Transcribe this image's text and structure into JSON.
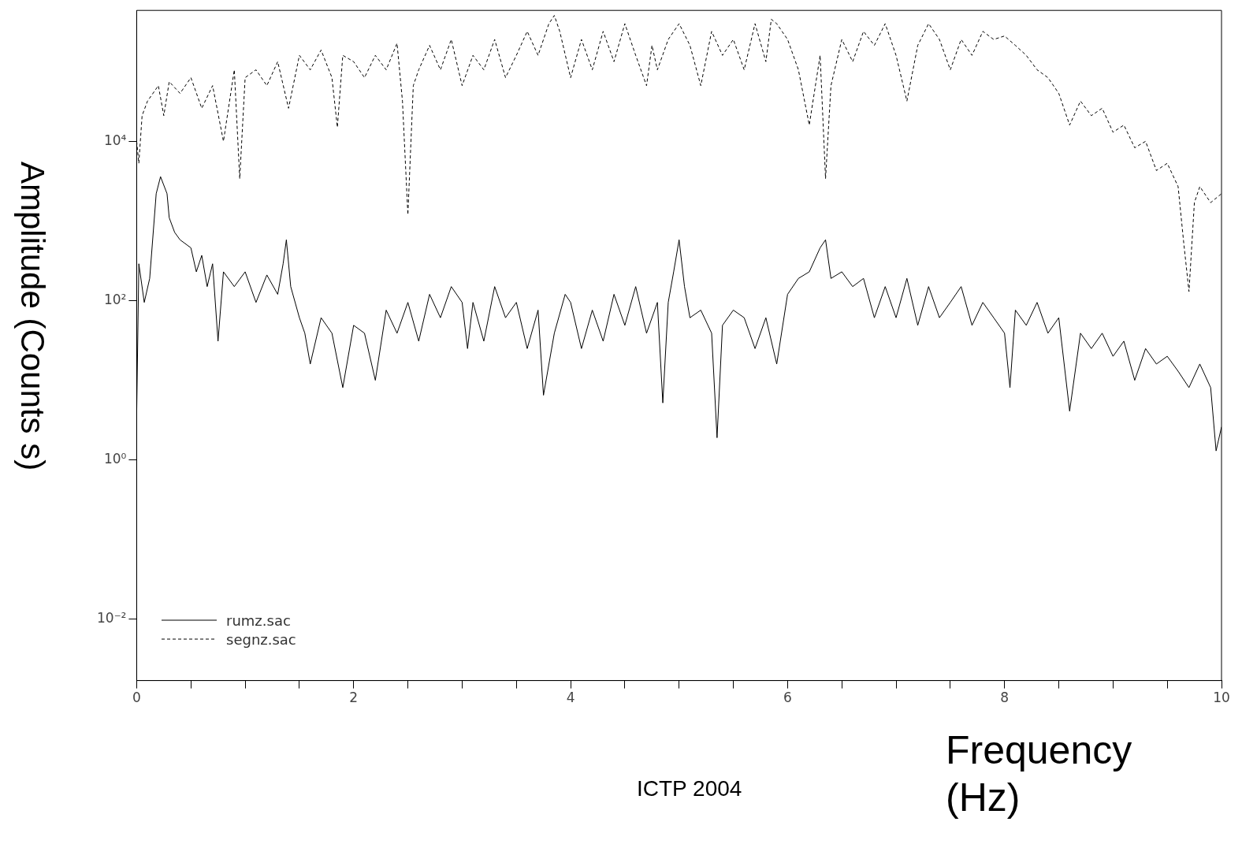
{
  "chart_data": {
    "type": "line",
    "xlabel": "Frequency (Hz)",
    "ylabel": "Amplitude (Counts s)",
    "annotations": [
      "ICTP 2004"
    ],
    "log": "y",
    "xlim": [
      0,
      10
    ],
    "ylim": [
      0.0017,
      440000
    ],
    "xticks": [
      0,
      {
        "value": 0.5,
        "label": null
      },
      {
        "value": 1,
        "label": null
      },
      {
        "value": 1.5,
        "label": null
      },
      2,
      {
        "value": 2.5,
        "label": null
      },
      {
        "value": 3,
        "label": null
      },
      {
        "value": 3.5,
        "label": null
      },
      4,
      {
        "value": 4.5,
        "label": null
      },
      {
        "value": 5,
        "label": null
      },
      {
        "value": 5.5,
        "label": null
      },
      6,
      {
        "value": 6.5,
        "label": null
      },
      {
        "value": 7,
        "label": null
      },
      {
        "value": 7.5,
        "label": null
      },
      8,
      {
        "value": 8.5,
        "label": null
      },
      {
        "value": 9,
        "label": null
      },
      {
        "value": 9.5,
        "label": null
      },
      10
    ],
    "yticks": [
      {
        "value": 0.01,
        "label": "10⁻²"
      },
      {
        "value": 1,
        "label": "10⁰"
      },
      {
        "value": 100,
        "label": "10²"
      },
      {
        "value": 10000,
        "label": "10⁴"
      }
    ],
    "grid": false,
    "legend": "bottom left",
    "marker": "none",
    "series": [
      {
        "name": "rumz.sac",
        "color": "#000000",
        "line_style": "solid",
        "x": [
          0,
          0.02,
          0.07,
          0.12,
          0.18,
          0.22,
          0.28,
          0.3,
          0.35,
          0.4,
          0.5,
          0.55,
          0.6,
          0.65,
          0.7,
          0.75,
          0.8,
          0.9,
          1.0,
          1.1,
          1.2,
          1.3,
          1.35,
          1.38,
          1.42,
          1.5,
          1.55,
          1.6,
          1.7,
          1.8,
          1.9,
          2.0,
          2.1,
          2.2,
          2.3,
          2.4,
          2.5,
          2.6,
          2.7,
          2.8,
          2.9,
          3.0,
          3.05,
          3.1,
          3.2,
          3.3,
          3.4,
          3.5,
          3.6,
          3.7,
          3.75,
          3.85,
          3.95,
          4.0,
          4.1,
          4.2,
          4.3,
          4.4,
          4.5,
          4.6,
          4.7,
          4.8,
          4.85,
          4.9,
          4.95,
          5.0,
          5.05,
          5.1,
          5.2,
          5.3,
          5.35,
          5.4,
          5.5,
          5.6,
          5.7,
          5.8,
          5.9,
          6.0,
          6.1,
          6.2,
          6.3,
          6.35,
          6.4,
          6.5,
          6.6,
          6.7,
          6.8,
          6.9,
          7.0,
          7.1,
          7.2,
          7.3,
          7.4,
          7.5,
          7.6,
          7.7,
          7.8,
          7.9,
          8.0,
          8.05,
          8.1,
          8.2,
          8.3,
          8.4,
          8.5,
          8.6,
          8.7,
          8.8,
          8.9,
          9.0,
          9.1,
          9.2,
          9.3,
          9.4,
          9.5,
          9.6,
          9.7,
          9.8,
          9.9,
          9.95,
          10.0
        ],
        "values": [
          3.7,
          290,
          95,
          190,
          2200,
          3600,
          2200,
          1100,
          720,
          580,
          460,
          230,
          370,
          150,
          290,
          31,
          230,
          150,
          230,
          95,
          210,
          120,
          290,
          580,
          150,
          61,
          39,
          16,
          61,
          39,
          8.1,
          49,
          39,
          10,
          76,
          39,
          95,
          31,
          120,
          61,
          150,
          95,
          25,
          95,
          31,
          150,
          61,
          95,
          25,
          76,
          6.5,
          39,
          120,
          95,
          25,
          76,
          31,
          120,
          49,
          150,
          39,
          95,
          5.2,
          95,
          230,
          580,
          150,
          61,
          76,
          39,
          1.9,
          49,
          76,
          61,
          25,
          61,
          16,
          120,
          190,
          230,
          460,
          580,
          190,
          230,
          150,
          190,
          61,
          150,
          61,
          190,
          49,
          150,
          61,
          95,
          150,
          49,
          95,
          61,
          39,
          8.1,
          76,
          49,
          95,
          39,
          61,
          4.1,
          39,
          25,
          39,
          20,
          31,
          10,
          25,
          16,
          20,
          13,
          8.1,
          16,
          8.1,
          1.3,
          2.6
        ]
      },
      {
        "name": "segnz.sac",
        "color": "#000000",
        "line_style": "dashed",
        "x": [
          0,
          0.02,
          0.05,
          0.1,
          0.2,
          0.25,
          0.3,
          0.4,
          0.5,
          0.6,
          0.7,
          0.8,
          0.9,
          0.95,
          1.0,
          1.1,
          1.2,
          1.3,
          1.4,
          1.5,
          1.6,
          1.7,
          1.8,
          1.85,
          1.9,
          2.0,
          2.1,
          2.2,
          2.3,
          2.4,
          2.45,
          2.5,
          2.55,
          2.6,
          2.7,
          2.8,
          2.9,
          3.0,
          3.1,
          3.2,
          3.3,
          3.4,
          3.5,
          3.6,
          3.7,
          3.8,
          3.85,
          3.9,
          4.0,
          4.1,
          4.2,
          4.3,
          4.4,
          4.5,
          4.6,
          4.7,
          4.75,
          4.8,
          4.9,
          5.0,
          5.1,
          5.2,
          5.3,
          5.4,
          5.5,
          5.6,
          5.7,
          5.8,
          5.85,
          5.9,
          6.0,
          6.1,
          6.2,
          6.3,
          6.35,
          6.4,
          6.5,
          6.6,
          6.7,
          6.8,
          6.9,
          7.0,
          7.1,
          7.2,
          7.3,
          7.4,
          7.5,
          7.6,
          7.7,
          7.8,
          7.9,
          8.0,
          8.1,
          8.2,
          8.3,
          8.4,
          8.5,
          8.6,
          8.7,
          8.8,
          8.9,
          9.0,
          9.1,
          9.2,
          9.3,
          9.4,
          9.5,
          9.6,
          9.65,
          9.7,
          9.75,
          9.8,
          9.9,
          10.0
        ],
        "values": [
          10000,
          5300,
          21000,
          32000,
          50000,
          21000,
          56000,
          40000,
          63000,
          26000,
          50000,
          10000,
          79000,
          3400,
          63000,
          79000,
          50000,
          100000,
          26000,
          120000,
          79000,
          140000,
          63000,
          15000,
          120000,
          100000,
          63000,
          120000,
          79000,
          170000,
          32000,
          1200,
          50000,
          79000,
          160000,
          79000,
          190000,
          50000,
          120000,
          79000,
          190000,
          63000,
          120000,
          240000,
          120000,
          300000,
          380000,
          240000,
          63000,
          190000,
          79000,
          240000,
          100000,
          300000,
          120000,
          50000,
          160000,
          79000,
          190000,
          300000,
          160000,
          50000,
          240000,
          120000,
          190000,
          79000,
          300000,
          100000,
          340000,
          300000,
          190000,
          79000,
          16000,
          120000,
          3400,
          50000,
          190000,
          100000,
          240000,
          160000,
          300000,
          120000,
          32000,
          160000,
          300000,
          190000,
          79000,
          190000,
          120000,
          240000,
          190000,
          210000,
          160000,
          120000,
          79000,
          63000,
          40000,
          16000,
          32000,
          21000,
          26000,
          13000,
          16000,
          8300,
          10000,
          4300,
          5300,
          2700,
          560,
          130,
          1700,
          2700,
          1700,
          2200
        ]
      }
    ]
  }
}
